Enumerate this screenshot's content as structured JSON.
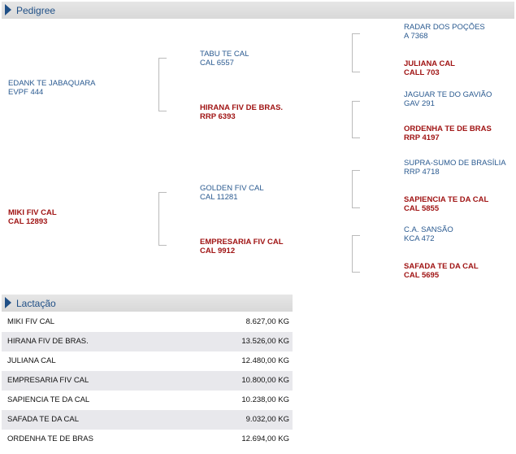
{
  "pedigree": {
    "title": "Pedigree",
    "parents": [
      {
        "name": "EDANK TE JABAQUARA",
        "reg": "EVPF 444"
      },
      {
        "name": "MIKI FIV CAL",
        "reg": "CAL 12893"
      }
    ],
    "grandparents": [
      {
        "name": "TABU TE CAL",
        "reg": "CAL 6557"
      },
      {
        "name": "HIRANA FIV DE BRAS.",
        "reg": "RRP 6393"
      },
      {
        "name": "GOLDEN FIV CAL",
        "reg": "CAL 11281"
      },
      {
        "name": "EMPRESARIA FIV CAL",
        "reg": "CAL 9912"
      }
    ],
    "great_grandparents": [
      {
        "name": "RADAR DOS POÇÕES",
        "reg": "A 7368"
      },
      {
        "name": "JULIANA CAL",
        "reg": "CALL 703"
      },
      {
        "name": "JAGUAR TE DO GAVIÃO",
        "reg": "GAV 291"
      },
      {
        "name": "ORDENHA TE DE BRAS",
        "reg": "RRP 4197"
      },
      {
        "name": "SUPRA-SUMO DE BRASÍLIA",
        "reg": "RRP 4718"
      },
      {
        "name": "SAPIENCIA TE DA CAL",
        "reg": "CAL 5855"
      },
      {
        "name": "C.A. SANSÃO",
        "reg": "KCA 472"
      },
      {
        "name": "SAFADA TE DA CAL",
        "reg": "CAL 5695"
      }
    ]
  },
  "lactation": {
    "title": "Lactação",
    "rows": [
      [
        "MIKI FIV CAL",
        "8.627,00 KG"
      ],
      [
        "HIRANA FIV DE BRAS.",
        "13.526,00 KG"
      ],
      [
        "JULIANA CAL",
        "12.480,00 KG"
      ],
      [
        "EMPRESARIA FIV CAL",
        "10.800,00 KG"
      ],
      [
        "SAPIENCIA TE DA CAL",
        "10.238,00 KG"
      ],
      [
        "SAFADA TE DA CAL",
        "9.032,00 KG"
      ],
      [
        "ORDENHA TE DE BRAS",
        "12.694,00 KG"
      ]
    ]
  }
}
